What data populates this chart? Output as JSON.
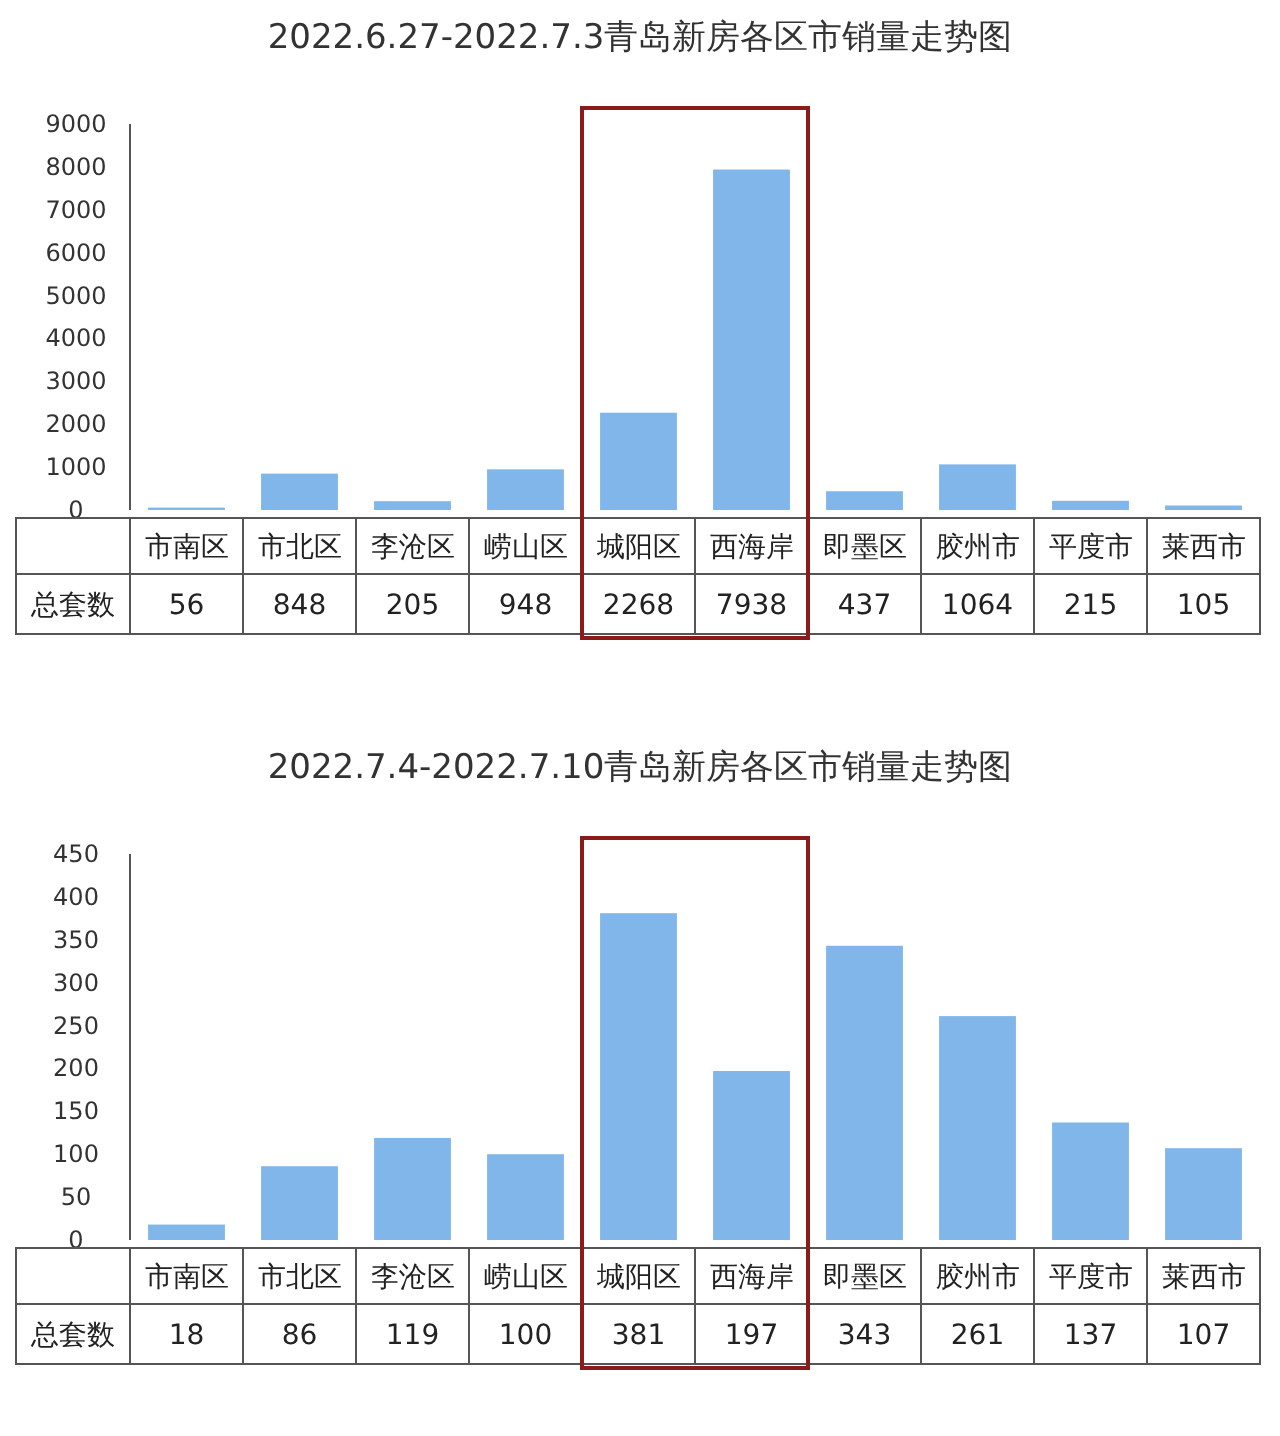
{
  "chart_data": [
    {
      "type": "bar",
      "title": "2022.6.27-2022.7.3青岛新房各区市销量走势图",
      "categories": [
        "市南区",
        "市北区",
        "李沧区",
        "崂山区",
        "城阳区",
        "西海岸",
        "即墨区",
        "胶州市",
        "平度市",
        "莱西市"
      ],
      "series": [
        {
          "name": "总套数",
          "color": "#80b6ea",
          "values": [
            56,
            848,
            205,
            948,
            2268,
            7938,
            437,
            1064,
            215,
            105
          ]
        }
      ],
      "ylim": [
        0,
        9000
      ],
      "yticks": [
        0,
        1000,
        2000,
        3000,
        4000,
        5000,
        6000,
        7000,
        8000,
        9000
      ],
      "data_labels": true
    },
    {
      "type": "bar",
      "title": "2022.7.4-2022.7.10青岛新房各区市销量走势图",
      "categories": [
        "市南区",
        "市北区",
        "李沧区",
        "崂山区",
        "城阳区",
        "西海岸",
        "即墨区",
        "胶州市",
        "平度市",
        "莱西市"
      ],
      "series": [
        {
          "name": "总套数",
          "color": "#80b6ea",
          "values": [
            18,
            86,
            119,
            100,
            381,
            197,
            343,
            261,
            137,
            107
          ]
        }
      ],
      "ylim": [
        0,
        450
      ],
      "yticks": [
        0,
        50,
        100,
        150,
        200,
        250,
        300,
        350,
        400,
        450
      ],
      "data_labels": true
    }
  ]
}
